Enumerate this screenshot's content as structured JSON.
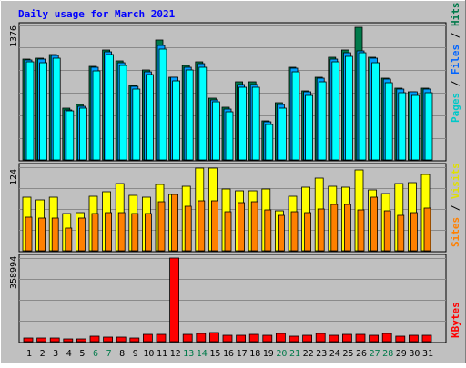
{
  "chart_data": [
    {
      "type": "bar",
      "title": "Daily usage for March 2021",
      "panel": "hits-files-pages",
      "categories": [
        "1",
        "2",
        "3",
        "4",
        "5",
        "6",
        "7",
        "8",
        "9",
        "10",
        "11",
        "12",
        "13",
        "14",
        "15",
        "16",
        "17",
        "18",
        "19",
        "20",
        "21",
        "22",
        "23",
        "24",
        "25",
        "26",
        "27",
        "28",
        "29",
        "30",
        "31"
      ],
      "weekend_days": [
        "6",
        "7",
        "13",
        "14",
        "20",
        "21",
        "27",
        "28"
      ],
      "y_max_label": "1376",
      "ylim": [
        0,
        1376
      ],
      "grid": true,
      "legend": "right side, vertical",
      "series": [
        {
          "name": "Hits",
          "color": "#007a4a",
          "values": [
            1033,
            1040,
            1074,
            532,
            569,
            955,
            1123,
            1011,
            762,
            924,
            1224,
            848,
            966,
            1000,
            632,
            543,
            796,
            797,
            402,
            584,
            944,
            710,
            848,
            1049,
            1121,
            1353,
            1046,
            834,
            730,
            698,
            730
          ]
        },
        {
          "name": "Files",
          "color": "#00a0ff",
          "values": [
            1021,
            1030,
            1067,
            509,
            547,
            947,
            1103,
            996,
            750,
            902,
            1173,
            845,
            947,
            985,
            617,
            522,
            774,
            775,
            387,
            563,
            935,
            697,
            838,
            1035,
            1096,
            1117,
            1038,
            829,
            725,
            697,
            727
          ]
        },
        {
          "name": "Pages",
          "color": "#00ffff",
          "values": [
            1001,
            999,
            1037,
            499,
            530,
            913,
            1080,
            964,
            723,
            871,
            1138,
            808,
            925,
            948,
            592,
            490,
            742,
            742,
            361,
            532,
            898,
            660,
            799,
            1005,
            1063,
            1096,
            997,
            790,
            692,
            663,
            692
          ]
        }
      ]
    },
    {
      "type": "bar",
      "panel": "visits-sites",
      "categories": [
        "1",
        "2",
        "3",
        "4",
        "5",
        "6",
        "7",
        "8",
        "9",
        "10",
        "11",
        "12",
        "13",
        "14",
        "15",
        "16",
        "17",
        "18",
        "19",
        "20",
        "21",
        "22",
        "23",
        "24",
        "25",
        "26",
        "27",
        "28",
        "29",
        "30",
        "31"
      ],
      "y_max_label": "124",
      "ylim": [
        0,
        124
      ],
      "grid": true,
      "legend": "right side, vertical",
      "series": [
        {
          "name": "Visits",
          "color": "#ffff00",
          "values": [
            79,
            75,
            79,
            55,
            56,
            81,
            87,
            100,
            82,
            80,
            98,
            84,
            96,
            123,
            123,
            91,
            89,
            89,
            91,
            59,
            81,
            94,
            108,
            96,
            95,
            120,
            90,
            85,
            100,
            101,
            113
          ]
        },
        {
          "name": "Sites",
          "color": "#ff8000",
          "values": [
            50,
            48,
            48,
            34,
            48,
            55,
            56,
            56,
            55,
            55,
            73,
            84,
            66,
            74,
            74,
            58,
            71,
            73,
            61,
            53,
            58,
            57,
            62,
            69,
            69,
            61,
            80,
            59,
            52,
            57,
            63
          ]
        }
      ]
    },
    {
      "type": "bar",
      "panel": "kbytes",
      "categories": [
        "1",
        "2",
        "3",
        "4",
        "5",
        "6",
        "7",
        "8",
        "9",
        "10",
        "11",
        "12",
        "13",
        "14",
        "15",
        "16",
        "17",
        "18",
        "19",
        "20",
        "21",
        "22",
        "23",
        "24",
        "25",
        "26",
        "27",
        "28",
        "29",
        "30",
        "31"
      ],
      "y_max_label": "358994",
      "ylim": [
        0,
        358994
      ],
      "grid": true,
      "legend": "right side, vertical",
      "series": [
        {
          "name": "KBytes",
          "color": "#ff0000",
          "values": [
            15000,
            14000,
            15000,
            12000,
            10000,
            23000,
            20000,
            20000,
            17000,
            33000,
            31000,
            358994,
            30000,
            34000,
            40000,
            27000,
            28000,
            32000,
            26000,
            35000,
            25000,
            26000,
            34000,
            27000,
            30000,
            33000,
            26000,
            34000,
            22000,
            28000,
            29000
          ]
        }
      ]
    }
  ]
}
